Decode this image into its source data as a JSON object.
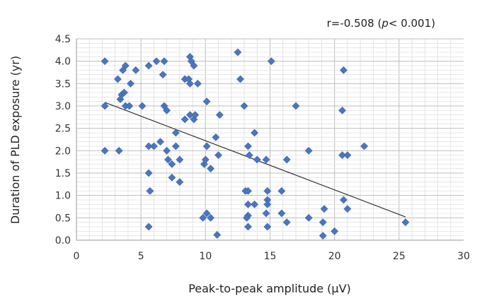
{
  "chart_data": {
    "type": "scatter",
    "xlabel": "Peak-to-peak amplitude (μV)",
    "ylabel": "Duration of PLD exposure (yr)",
    "xlim": [
      0,
      30
    ],
    "ylim": [
      0,
      4.5
    ],
    "xticks": [
      0,
      5,
      10,
      15,
      20,
      25,
      30
    ],
    "yticks": [
      "0.0",
      "0.5",
      "1.0",
      "1.5",
      "2.0",
      "2.5",
      "3.0",
      "3.5",
      "4.0",
      "4.5"
    ],
    "annotation": {
      "prefix": "r=-0.508 (",
      "p_symbol": "p",
      "suffix": "< 0.001)"
    },
    "grid": true,
    "marker_color": "#4a76c0",
    "trendline": {
      "x": [
        2.2,
        25.5
      ],
      "y": [
        3.08,
        0.52
      ]
    },
    "points": [
      [
        2.2,
        4.0
      ],
      [
        2.2,
        3.0
      ],
      [
        2.2,
        2.0
      ],
      [
        3.2,
        3.6
      ],
      [
        3.4,
        3.15
      ],
      [
        3.5,
        3.25
      ],
      [
        3.7,
        3.3
      ],
      [
        3.6,
        3.8
      ],
      [
        3.8,
        3.9
      ],
      [
        3.3,
        2.0
      ],
      [
        3.8,
        3.0
      ],
      [
        4.1,
        3.0
      ],
      [
        4.2,
        3.5
      ],
      [
        4.6,
        3.8
      ],
      [
        5.1,
        3.0
      ],
      [
        5.6,
        3.9
      ],
      [
        5.6,
        2.1
      ],
      [
        5.6,
        1.5
      ],
      [
        5.7,
        1.1
      ],
      [
        5.6,
        0.3
      ],
      [
        6.0,
        2.1
      ],
      [
        6.2,
        4.0
      ],
      [
        6.5,
        2.2
      ],
      [
        6.7,
        3.7
      ],
      [
        6.8,
        4.0
      ],
      [
        6.8,
        3.0
      ],
      [
        7.0,
        2.9
      ],
      [
        7.0,
        2.0
      ],
      [
        7.1,
        1.8
      ],
      [
        7.4,
        1.7
      ],
      [
        7.4,
        1.4
      ],
      [
        7.7,
        2.4
      ],
      [
        7.7,
        2.1
      ],
      [
        8.0,
        1.8
      ],
      [
        8.0,
        1.3
      ],
      [
        8.4,
        3.6
      ],
      [
        8.4,
        2.7
      ],
      [
        8.7,
        3.6
      ],
      [
        8.8,
        4.1
      ],
      [
        8.9,
        4.0
      ],
      [
        8.8,
        3.5
      ],
      [
        8.8,
        2.8
      ],
      [
        9.1,
        2.7
      ],
      [
        9.1,
        3.9
      ],
      [
        9.2,
        2.8
      ],
      [
        9.4,
        3.5
      ],
      [
        9.9,
        1.7
      ],
      [
        9.8,
        0.5
      ],
      [
        10.0,
        1.8
      ],
      [
        10.1,
        3.1
      ],
      [
        10.1,
        2.1
      ],
      [
        10.1,
        0.6
      ],
      [
        10.4,
        1.6
      ],
      [
        10.4,
        0.5
      ],
      [
        10.8,
        2.3
      ],
      [
        10.9,
        0.12
      ],
      [
        11.0,
        1.9
      ],
      [
        11.1,
        2.8
      ],
      [
        12.5,
        4.2
      ],
      [
        12.7,
        3.6
      ],
      [
        13.0,
        3.0
      ],
      [
        13.1,
        1.1
      ],
      [
        13.3,
        2.1
      ],
      [
        13.4,
        1.9
      ],
      [
        13.3,
        1.1
      ],
      [
        13.3,
        0.8
      ],
      [
        13.3,
        0.55
      ],
      [
        13.2,
        0.5
      ],
      [
        13.3,
        0.3
      ],
      [
        13.8,
        2.4
      ],
      [
        13.8,
        0.8
      ],
      [
        14.0,
        1.8
      ],
      [
        14.7,
        1.8
      ],
      [
        14.8,
        1.1
      ],
      [
        14.8,
        0.9
      ],
      [
        14.8,
        0.8
      ],
      [
        14.7,
        0.6
      ],
      [
        14.8,
        0.3
      ],
      [
        15.1,
        4.0
      ],
      [
        15.9,
        1.1
      ],
      [
        15.9,
        0.6
      ],
      [
        16.3,
        1.8
      ],
      [
        16.3,
        0.4
      ],
      [
        17.0,
        3.0
      ],
      [
        18.0,
        2.0
      ],
      [
        18.0,
        0.5
      ],
      [
        19.2,
        0.7
      ],
      [
        19.1,
        0.4
      ],
      [
        19.1,
        0.1
      ],
      [
        20.0,
        0.2
      ],
      [
        20.7,
        3.8
      ],
      [
        20.6,
        2.9
      ],
      [
        20.6,
        1.9
      ],
      [
        20.7,
        0.9
      ],
      [
        21.0,
        1.9
      ],
      [
        21.0,
        0.7
      ],
      [
        22.3,
        2.1
      ],
      [
        25.5,
        0.4
      ]
    ]
  }
}
